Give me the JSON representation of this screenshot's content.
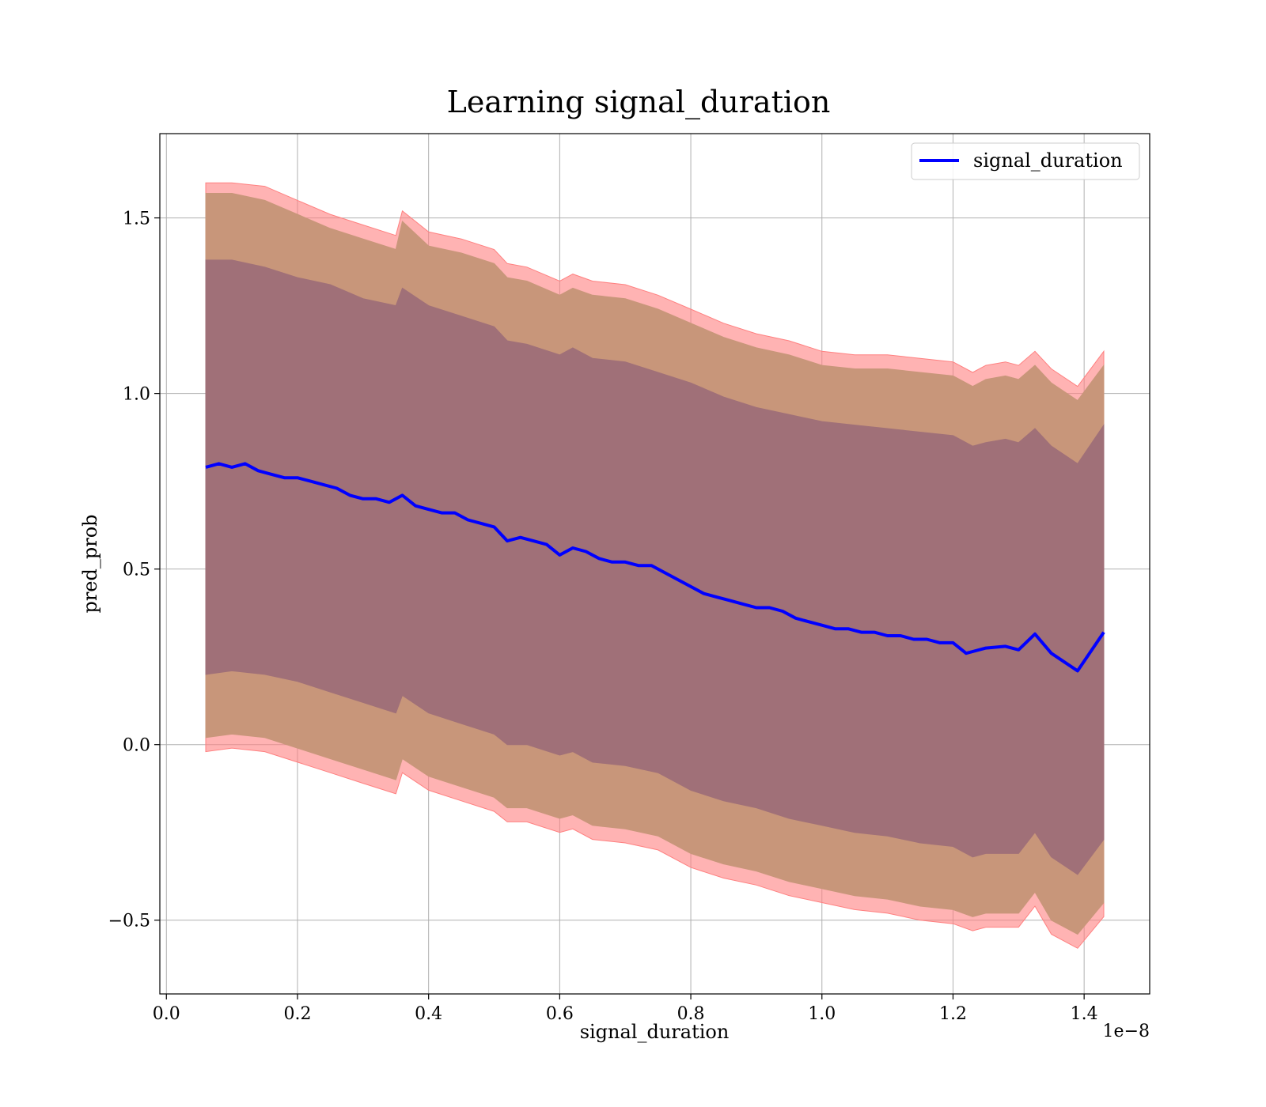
{
  "chart_data": {
    "type": "line",
    "title": "Learning signal_duration",
    "xlabel": "signal_duration",
    "ylabel": "pred_prob",
    "x_offset_label": "1e−8",
    "xlim": [
      -0.01,
      1.5
    ],
    "ylim": [
      -0.71,
      1.74
    ],
    "grid": true,
    "legend_position": "top-right",
    "x_ticks": [
      0.0,
      0.2,
      0.4,
      0.6,
      0.8,
      1.0,
      1.2,
      1.4
    ],
    "x_tick_labels": [
      "0.0",
      "0.2",
      "0.4",
      "0.6",
      "0.8",
      "1.0",
      "1.2",
      "1.4"
    ],
    "y_ticks": [
      -0.5,
      0.0,
      0.5,
      1.0,
      1.5
    ],
    "y_tick_labels": [
      "−0.5",
      "0.0",
      "0.5",
      "1.0",
      "1.5"
    ],
    "colors": {
      "mean_line": "#0000ff",
      "band_outer": "#ff8080",
      "band_middle": "#c8967a",
      "band_inner": "#a07078",
      "grid": "#b0b0b0"
    },
    "series": [
      {
        "name": "signal_duration",
        "x": [
          0.06,
          0.08,
          0.1,
          0.12,
          0.14,
          0.16,
          0.18,
          0.2,
          0.22,
          0.24,
          0.26,
          0.28,
          0.3,
          0.32,
          0.34,
          0.36,
          0.38,
          0.4,
          0.42,
          0.44,
          0.46,
          0.48,
          0.5,
          0.52,
          0.54,
          0.56,
          0.58,
          0.6,
          0.62,
          0.64,
          0.66,
          0.68,
          0.7,
          0.72,
          0.74,
          0.76,
          0.78,
          0.8,
          0.82,
          0.84,
          0.86,
          0.88,
          0.9,
          0.92,
          0.94,
          0.96,
          0.98,
          1.0,
          1.02,
          1.04,
          1.06,
          1.08,
          1.1,
          1.12,
          1.14,
          1.16,
          1.18,
          1.2,
          1.22,
          1.23,
          1.25,
          1.28,
          1.3,
          1.325,
          1.35,
          1.39,
          1.43
        ],
        "y": [
          0.79,
          0.8,
          0.79,
          0.8,
          0.78,
          0.77,
          0.76,
          0.76,
          0.75,
          0.74,
          0.73,
          0.71,
          0.7,
          0.7,
          0.69,
          0.71,
          0.68,
          0.67,
          0.66,
          0.66,
          0.64,
          0.63,
          0.62,
          0.58,
          0.59,
          0.58,
          0.57,
          0.54,
          0.56,
          0.55,
          0.53,
          0.52,
          0.52,
          0.51,
          0.51,
          0.49,
          0.47,
          0.45,
          0.43,
          0.42,
          0.41,
          0.4,
          0.39,
          0.39,
          0.38,
          0.36,
          0.35,
          0.34,
          0.33,
          0.33,
          0.32,
          0.32,
          0.31,
          0.31,
          0.3,
          0.3,
          0.29,
          0.29,
          0.26,
          0.265,
          0.275,
          0.28,
          0.27,
          0.315,
          0.26,
          0.21,
          0.32
        ]
      }
    ],
    "bands": [
      {
        "level": "outer",
        "x": [
          0.06,
          0.1,
          0.15,
          0.2,
          0.25,
          0.3,
          0.35,
          0.36,
          0.4,
          0.45,
          0.5,
          0.52,
          0.55,
          0.6,
          0.62,
          0.65,
          0.7,
          0.75,
          0.8,
          0.85,
          0.9,
          0.95,
          1.0,
          1.05,
          1.1,
          1.15,
          1.2,
          1.23,
          1.25,
          1.28,
          1.3,
          1.325,
          1.35,
          1.39,
          1.43
        ],
        "upper": [
          1.6,
          1.6,
          1.59,
          1.55,
          1.51,
          1.48,
          1.45,
          1.52,
          1.46,
          1.44,
          1.41,
          1.37,
          1.36,
          1.32,
          1.34,
          1.32,
          1.31,
          1.28,
          1.24,
          1.2,
          1.17,
          1.15,
          1.12,
          1.11,
          1.11,
          1.1,
          1.09,
          1.06,
          1.08,
          1.09,
          1.08,
          1.12,
          1.07,
          1.02,
          1.12
        ],
        "lower": [
          -0.02,
          -0.01,
          -0.02,
          -0.05,
          -0.08,
          -0.11,
          -0.14,
          -0.08,
          -0.13,
          -0.16,
          -0.19,
          -0.22,
          -0.22,
          -0.25,
          -0.24,
          -0.27,
          -0.28,
          -0.3,
          -0.35,
          -0.38,
          -0.4,
          -0.43,
          -0.45,
          -0.47,
          -0.48,
          -0.5,
          -0.51,
          -0.53,
          -0.52,
          -0.52,
          -0.52,
          -0.46,
          -0.54,
          -0.58,
          -0.49
        ]
      },
      {
        "level": "middle",
        "x": [
          0.06,
          0.1,
          0.15,
          0.2,
          0.25,
          0.3,
          0.35,
          0.36,
          0.4,
          0.45,
          0.5,
          0.52,
          0.55,
          0.6,
          0.62,
          0.65,
          0.7,
          0.75,
          0.8,
          0.85,
          0.9,
          0.95,
          1.0,
          1.05,
          1.1,
          1.15,
          1.2,
          1.23,
          1.25,
          1.28,
          1.3,
          1.325,
          1.35,
          1.39,
          1.43
        ],
        "upper": [
          1.57,
          1.57,
          1.55,
          1.51,
          1.47,
          1.44,
          1.41,
          1.49,
          1.42,
          1.4,
          1.37,
          1.33,
          1.32,
          1.28,
          1.3,
          1.28,
          1.27,
          1.24,
          1.2,
          1.16,
          1.13,
          1.11,
          1.08,
          1.07,
          1.07,
          1.06,
          1.05,
          1.02,
          1.04,
          1.05,
          1.04,
          1.08,
          1.03,
          0.98,
          1.08
        ],
        "lower": [
          0.02,
          0.03,
          0.02,
          -0.01,
          -0.04,
          -0.07,
          -0.1,
          -0.04,
          -0.09,
          -0.12,
          -0.15,
          -0.18,
          -0.18,
          -0.21,
          -0.2,
          -0.23,
          -0.24,
          -0.26,
          -0.31,
          -0.34,
          -0.36,
          -0.39,
          -0.41,
          -0.43,
          -0.44,
          -0.46,
          -0.47,
          -0.49,
          -0.48,
          -0.48,
          -0.48,
          -0.42,
          -0.5,
          -0.54,
          -0.45
        ]
      },
      {
        "level": "inner",
        "x": [
          0.06,
          0.1,
          0.15,
          0.2,
          0.25,
          0.3,
          0.35,
          0.36,
          0.4,
          0.45,
          0.5,
          0.52,
          0.55,
          0.6,
          0.62,
          0.65,
          0.7,
          0.75,
          0.8,
          0.85,
          0.9,
          0.95,
          1.0,
          1.05,
          1.1,
          1.15,
          1.2,
          1.23,
          1.25,
          1.28,
          1.3,
          1.325,
          1.35,
          1.39,
          1.43
        ],
        "upper": [
          1.38,
          1.38,
          1.36,
          1.33,
          1.31,
          1.27,
          1.25,
          1.3,
          1.25,
          1.22,
          1.19,
          1.15,
          1.14,
          1.11,
          1.13,
          1.1,
          1.09,
          1.06,
          1.03,
          0.99,
          0.96,
          0.94,
          0.92,
          0.91,
          0.9,
          0.89,
          0.88,
          0.85,
          0.86,
          0.87,
          0.86,
          0.9,
          0.85,
          0.8,
          0.91
        ],
        "lower": [
          0.2,
          0.21,
          0.2,
          0.18,
          0.15,
          0.12,
          0.09,
          0.14,
          0.09,
          0.06,
          0.03,
          0.0,
          0.0,
          -0.03,
          -0.02,
          -0.05,
          -0.06,
          -0.08,
          -0.13,
          -0.16,
          -0.18,
          -0.21,
          -0.23,
          -0.25,
          -0.26,
          -0.28,
          -0.29,
          -0.32,
          -0.31,
          -0.31,
          -0.31,
          -0.25,
          -0.32,
          -0.37,
          -0.27
        ]
      }
    ]
  }
}
